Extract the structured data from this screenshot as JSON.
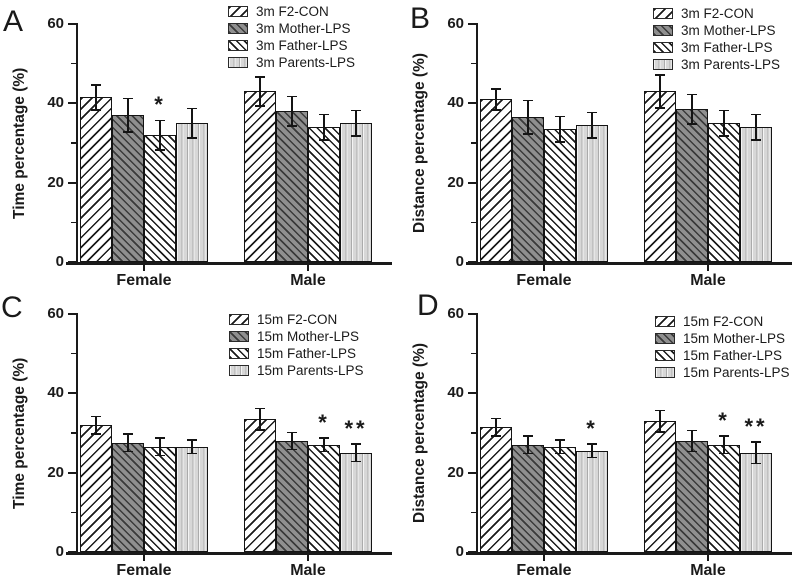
{
  "colors": {
    "axis": "#1a1a1a",
    "hatch_line": "#1a1a1a",
    "dark_bar_fill": "#8f8f8f",
    "light_bar_fill": "#dcdcdc",
    "background": "#ffffff"
  },
  "chart_data": [
    {
      "type": "bar",
      "letter": "A",
      "ylabel": "Time percentage (%)",
      "xlabel": "",
      "ylim": [
        0,
        60
      ],
      "yticks": [
        0,
        20,
        40,
        60
      ],
      "minor_yticks": [
        10,
        30,
        50
      ],
      "categories": [
        "Female",
        "Male"
      ],
      "grid": false,
      "legend_position": "top-right",
      "series": [
        {
          "name": "3m F2-CON",
          "pattern": "diagonal-up-hatch",
          "values": [
            41.5,
            43.0
          ],
          "errors": [
            3.0,
            3.5
          ]
        },
        {
          "name": "3m Mother-LPS",
          "pattern": "dark-diagonal-down-hatch",
          "values": [
            37.0,
            38.0
          ],
          "errors": [
            4.0,
            3.5
          ]
        },
        {
          "name": "3m Father-LPS",
          "pattern": "diagonal-down-hatch",
          "values": [
            32.0,
            34.0
          ],
          "errors": [
            3.5,
            3.0
          ]
        },
        {
          "name": "3m Parents-LPS",
          "pattern": "vertical-stripes",
          "values": [
            35.0,
            35.0
          ],
          "errors": [
            3.5,
            3.0
          ]
        }
      ],
      "annotations": [
        {
          "category": "Female",
          "series": "3m Father-LPS",
          "text": "*"
        }
      ]
    },
    {
      "type": "bar",
      "letter": "B",
      "ylabel": "Distance percentage (%)",
      "xlabel": "",
      "ylim": [
        0,
        60
      ],
      "yticks": [
        0,
        20,
        40,
        60
      ],
      "minor_yticks": [
        10,
        30,
        50
      ],
      "categories": [
        "Female",
        "Male"
      ],
      "grid": false,
      "legend_position": "top-right",
      "series": [
        {
          "name": "3m F2-CON",
          "pattern": "diagonal-up-hatch",
          "values": [
            41.0,
            43.0
          ],
          "errors": [
            2.5,
            4.0
          ]
        },
        {
          "name": "3m Mother-LPS",
          "pattern": "dark-diagonal-down-hatch",
          "values": [
            36.5,
            38.5
          ],
          "errors": [
            4.0,
            3.5
          ]
        },
        {
          "name": "3m Father-LPS",
          "pattern": "diagonal-down-hatch",
          "values": [
            33.5,
            35.0
          ],
          "errors": [
            3.0,
            3.0
          ]
        },
        {
          "name": "3m Parents-LPS",
          "pattern": "vertical-stripes",
          "values": [
            34.5,
            34.0
          ],
          "errors": [
            3.0,
            3.0
          ]
        }
      ],
      "annotations": []
    },
    {
      "type": "bar",
      "letter": "C",
      "ylabel": "Time percentage (%)",
      "xlabel": "",
      "ylim": [
        0,
        60
      ],
      "yticks": [
        0,
        20,
        40,
        60
      ],
      "minor_yticks": [
        10,
        30,
        50
      ],
      "categories": [
        "Female",
        "Male"
      ],
      "grid": false,
      "legend_position": "top-right",
      "series": [
        {
          "name": "15m F2-CON",
          "pattern": "diagonal-up-hatch",
          "values": [
            32.0,
            33.5
          ],
          "errors": [
            2.0,
            2.5
          ]
        },
        {
          "name": "15m Mother-LPS",
          "pattern": "dark-diagonal-down-hatch",
          "values": [
            27.5,
            28.0
          ],
          "errors": [
            2.0,
            2.0
          ]
        },
        {
          "name": "15m Father-LPS",
          "pattern": "diagonal-down-hatch",
          "values": [
            26.5,
            27.0
          ],
          "errors": [
            2.0,
            1.5
          ]
        },
        {
          "name": "15m Parents-LPS",
          "pattern": "vertical-stripes",
          "values": [
            26.5,
            25.0
          ],
          "errors": [
            1.5,
            2.0
          ]
        }
      ],
      "annotations": [
        {
          "category": "Male",
          "series": "15m Father-LPS",
          "text": "*"
        },
        {
          "category": "Male",
          "series": "15m Parents-LPS",
          "text": "**"
        }
      ]
    },
    {
      "type": "bar",
      "letter": "D",
      "ylabel": "Distance percentage (%)",
      "xlabel": "",
      "ylim": [
        0,
        60
      ],
      "yticks": [
        0,
        20,
        40,
        60
      ],
      "minor_yticks": [
        10,
        30,
        50
      ],
      "categories": [
        "Female",
        "Male"
      ],
      "grid": false,
      "legend_position": "top-right",
      "series": [
        {
          "name": "15m F2-CON",
          "pattern": "diagonal-up-hatch",
          "values": [
            31.5,
            33.0
          ],
          "errors": [
            2.0,
            2.5
          ]
        },
        {
          "name": "15m Mother-LPS",
          "pattern": "dark-diagonal-down-hatch",
          "values": [
            27.0,
            28.0
          ],
          "errors": [
            2.0,
            2.5
          ]
        },
        {
          "name": "15m Father-LPS",
          "pattern": "diagonal-down-hatch",
          "values": [
            26.5,
            27.0
          ],
          "errors": [
            1.5,
            2.0
          ]
        },
        {
          "name": "15m Parents-LPS",
          "pattern": "vertical-stripes",
          "values": [
            25.5,
            25.0
          ],
          "errors": [
            1.5,
            2.5
          ]
        }
      ],
      "annotations": [
        {
          "category": "Female",
          "series": "15m Parents-LPS",
          "text": "*"
        },
        {
          "category": "Male",
          "series": "15m Father-LPS",
          "text": "*"
        },
        {
          "category": "Male",
          "series": "15m Parents-LPS",
          "text": "**"
        }
      ]
    }
  ]
}
